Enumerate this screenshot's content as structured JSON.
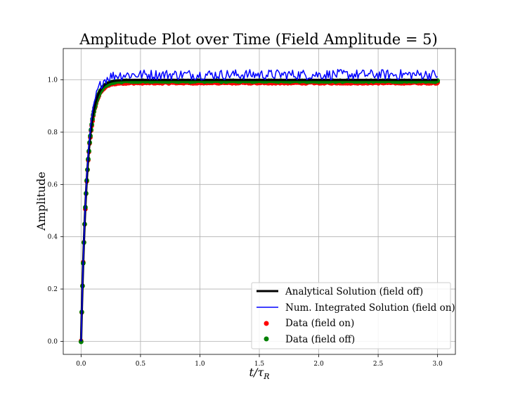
{
  "chart_data": {
    "type": "line",
    "title": "Amplitude Plot over Time (Field Amplitude = 5)",
    "xlabel": "t/τ",
    "xlabel_sub": "R",
    "ylabel": "Amplitude",
    "xlim": [
      -0.15,
      3.15
    ],
    "ylim": [
      -0.05,
      1.12
    ],
    "xticks": [
      0.0,
      0.5,
      1.0,
      1.5,
      2.0,
      2.5,
      3.0
    ],
    "xtick_labels": [
      "0.0",
      "0.5",
      "1.0",
      "1.5",
      "2.0",
      "2.5",
      "3.0"
    ],
    "yticks": [
      0.0,
      0.2,
      0.4,
      0.6,
      0.8,
      1.0
    ],
    "ytick_labels": [
      "0.0",
      "0.2",
      "0.4",
      "0.6",
      "0.8",
      "1.0"
    ],
    "grid": true,
    "legend_position": "lower right",
    "model": {
      "form": "1 - exp(-t / tau)",
      "tau": 0.05,
      "x_range": [
        0.0,
        3.0
      ]
    },
    "series": [
      {
        "name": "Analytical Solution (field off)",
        "kind": "line",
        "color": "#000000",
        "style": "thick"
      },
      {
        "name": "Num. Integrated Solution (field on)",
        "kind": "line",
        "color": "#0000ff",
        "style": "noisy",
        "noise_amplitude": 0.02,
        "plateau": 1.02
      },
      {
        "name": "Data (field on)",
        "kind": "scatter",
        "color": "#ff0000",
        "plateau": 0.99
      },
      {
        "name": "Data (field off)",
        "kind": "scatter",
        "color": "#008000",
        "plateau": 0.995
      }
    ]
  }
}
